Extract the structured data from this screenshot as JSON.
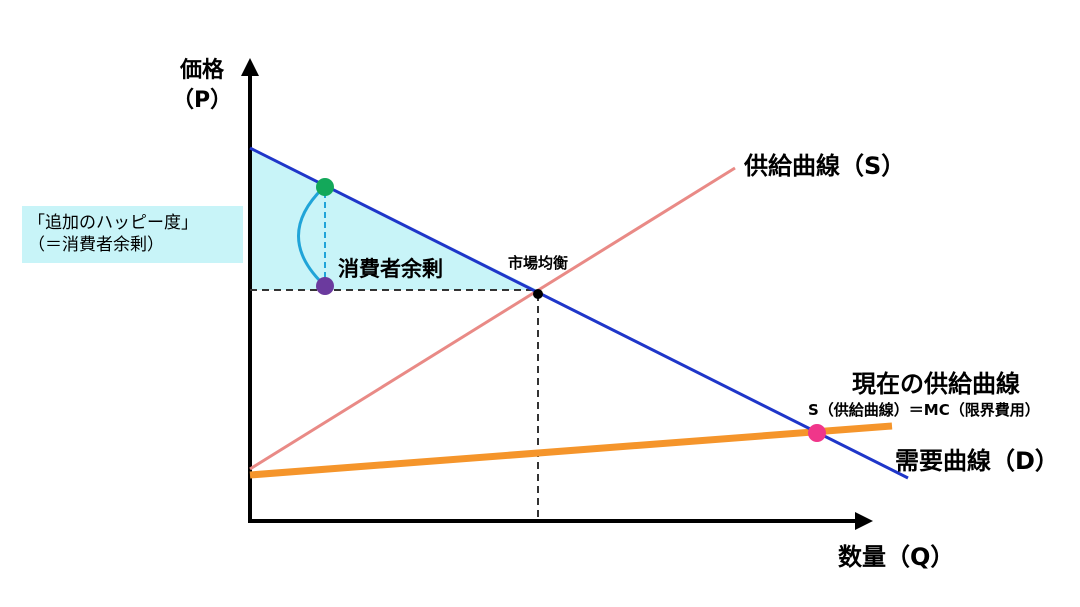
{
  "axes": {
    "y_title_line1": "価格",
    "y_title_line2": "（P）",
    "x_title": "数量（Q）"
  },
  "curves": {
    "supply": "供給曲線（S）",
    "demand": "需要曲線（D）",
    "current_supply": "現在の供給曲線",
    "current_supply_note": "S（供給曲線）＝MC（限界費用）"
  },
  "points": {
    "equilibrium": "市場均衡"
  },
  "areas": {
    "consumer_surplus": "消費者余剰"
  },
  "callout": {
    "line1": "「追加のハッピー度」",
    "line2": "（＝消費者余剰）"
  },
  "colors": {
    "demand_line": "#1f36c9",
    "supply_line": "#e98a86",
    "current_supply_line": "#f5952b",
    "surplus_fill": "#c8f4f8",
    "surplus_marker": "#20a4d8",
    "green_point": "#13a85a",
    "purple_point": "#6b3a9e",
    "pink_point": "#f0368a",
    "equilibrium_point": "#000000"
  }
}
